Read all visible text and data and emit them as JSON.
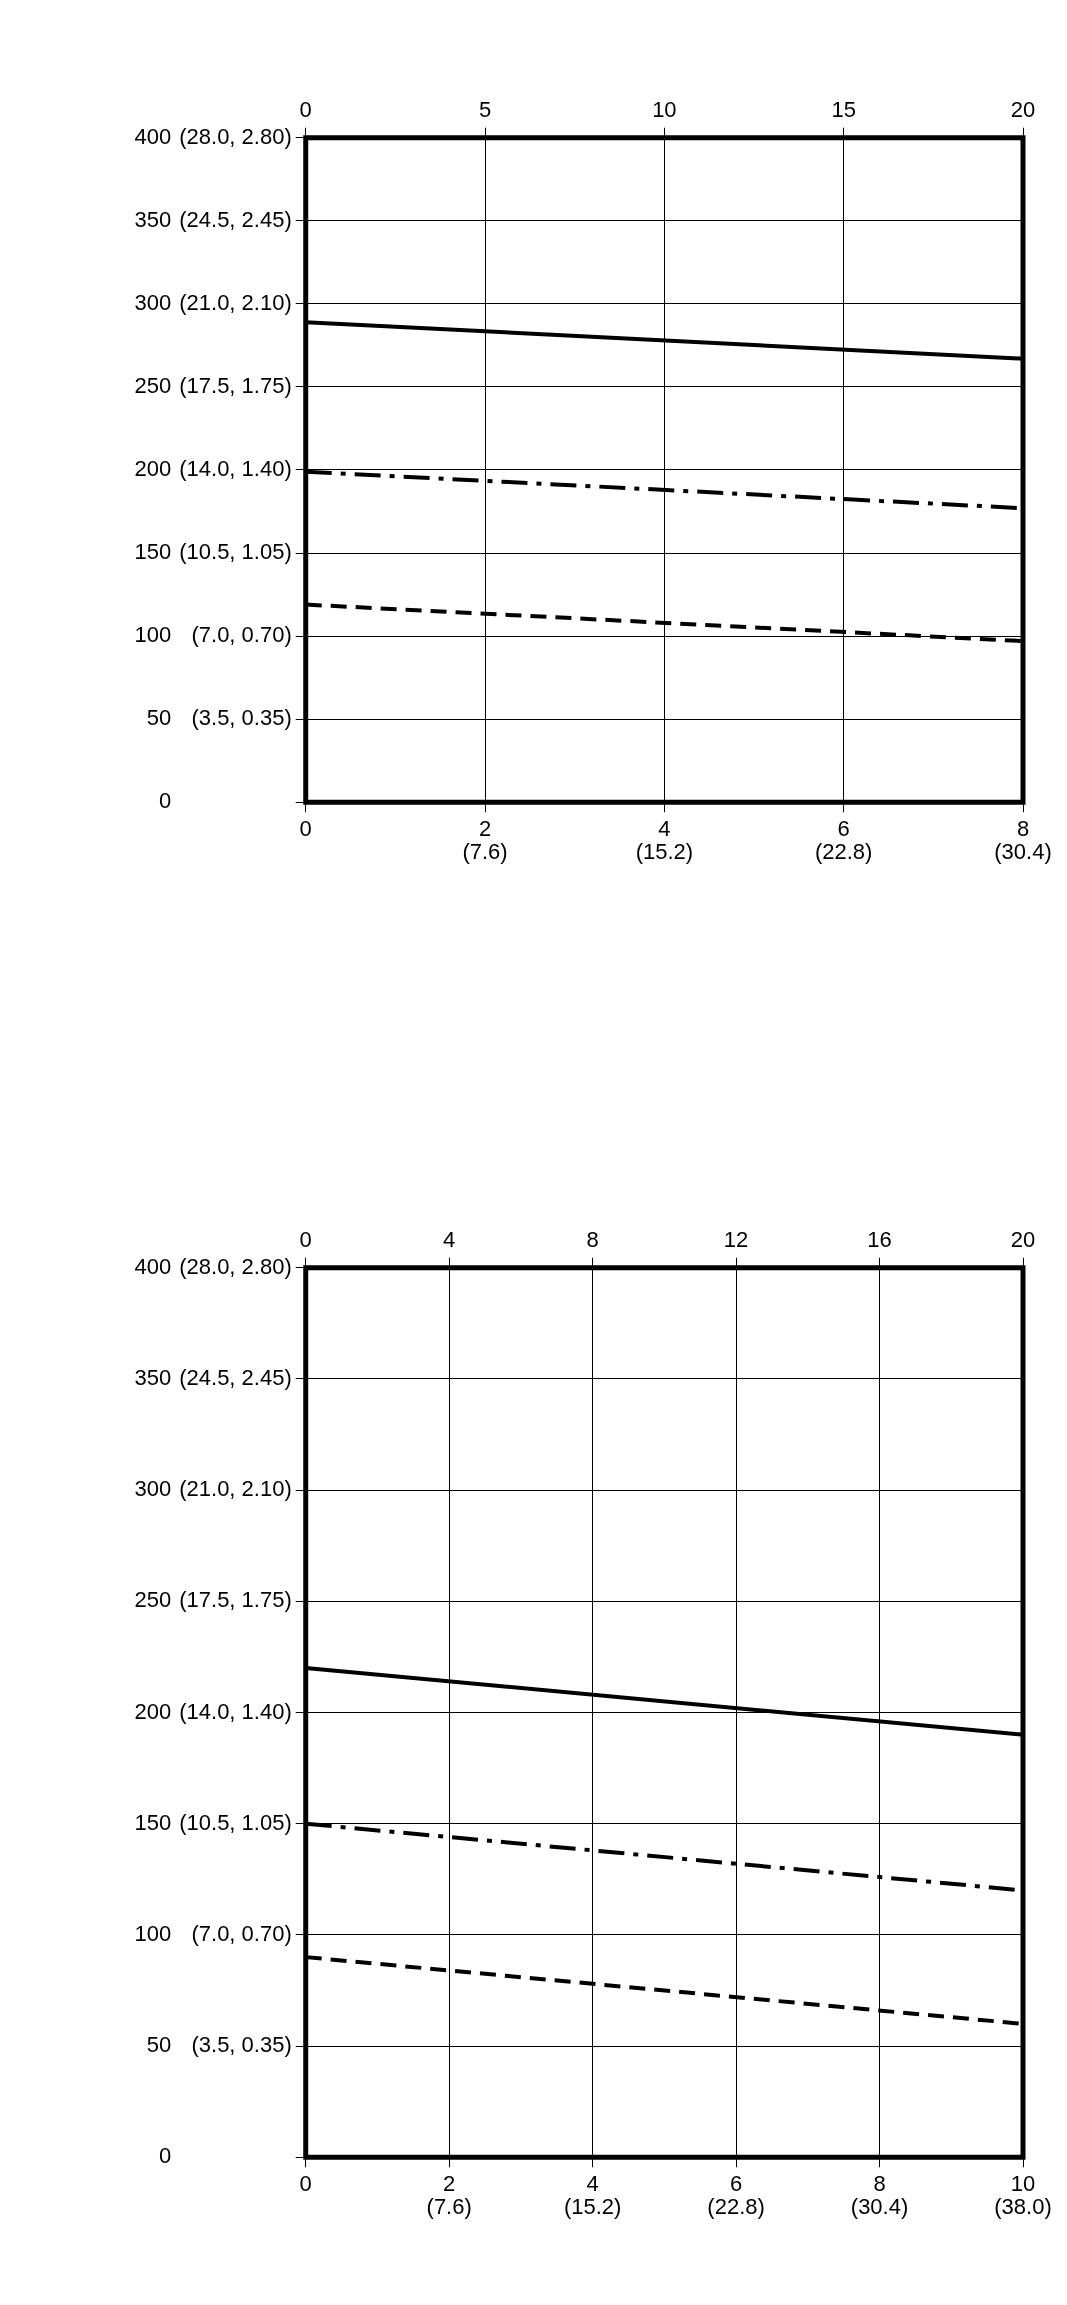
{
  "chart_data": [
    {
      "type": "line",
      "xlim": [
        0,
        8
      ],
      "xticks": [
        0,
        2,
        4,
        6,
        8
      ],
      "x2lim": [
        0,
        20
      ],
      "x2ticks": [
        0,
        5,
        10,
        15,
        20
      ],
      "ylim": [
        0,
        400
      ],
      "yticks": [
        0,
        50,
        100,
        150,
        200,
        250,
        300,
        350,
        400
      ],
      "grid": true,
      "legend": false,
      "marker": "none",
      "x": [
        0,
        8
      ],
      "annotations": [
        "(7.6)",
        "(15.2)",
        "(22.8)",
        "(30.4)",
        "(3.5, 0.35)",
        "(7.0, 0.70)",
        "(10.5, 1.05)",
        "(14.0, 1.40)",
        "(17.5, 1.75)",
        "(21.0, 2.10)",
        "(24.5, 2.45)",
        "(28.0, 2.80)"
      ],
      "series": [
        {
          "color": "#000000",
          "line_style": "solid",
          "values": [
            289,
            267
          ]
        },
        {
          "color": "#000000",
          "line_style": "dashdot",
          "values": [
            199,
            177
          ]
        },
        {
          "color": "#000000",
          "line_style": "dashed",
          "values": [
            119,
            97
          ]
        }
      ]
    },
    {
      "type": "line",
      "xlim": [
        0,
        10
      ],
      "xticks": [
        0,
        2,
        4,
        6,
        8,
        10
      ],
      "x2lim": [
        0,
        20
      ],
      "x2ticks": [
        0,
        4,
        8,
        12,
        16,
        20
      ],
      "ylim": [
        0,
        400
      ],
      "yticks": [
        0,
        50,
        100,
        150,
        200,
        250,
        300,
        350,
        400
      ],
      "grid": true,
      "legend": false,
      "marker": "none",
      "x": [
        0,
        10
      ],
      "annotations": [
        "(7.6)",
        "(15.2)",
        "(22.8)",
        "(30.4)",
        "(38.0)",
        "(3.5, 0.35)",
        "(7.0, 0.70)",
        "(10.5, 1.05)",
        "(14.0, 1.40)",
        "(17.5, 1.75)",
        "(21.0, 2.10)",
        "(24.5, 2.45)",
        "(28.0, 2.80)"
      ],
      "series": [
        {
          "color": "#000000",
          "line_style": "solid",
          "values": [
            220,
            190
          ]
        },
        {
          "color": "#000000",
          "line_style": "dashdot",
          "values": [
            150,
            120
          ]
        },
        {
          "color": "#000000",
          "line_style": "dashed",
          "values": [
            90,
            60
          ]
        }
      ]
    }
  ]
}
